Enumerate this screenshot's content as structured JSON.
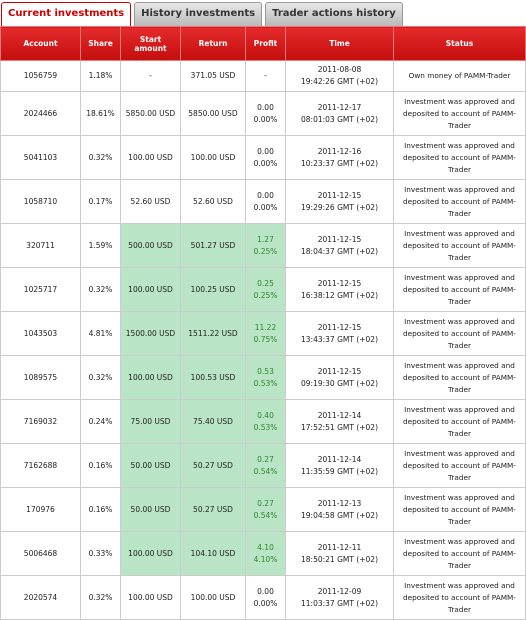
{
  "tabs": [
    "Current investments",
    "History investments",
    "Trader actions history"
  ],
  "active_tab": 0,
  "table": {
    "columns": [
      "Account",
      "Share",
      "Start amount",
      "Return",
      "Profit",
      "Time",
      "Status"
    ],
    "rows": [
      {
        "account": "1056759",
        "share": "1.18%",
        "start": "-",
        "return": "371.05 USD",
        "profit": [
          "-"
        ],
        "time": [
          "2011-08-08",
          "19:42:26 GMT (+02)"
        ],
        "status": "Own money of PAMM-Trader",
        "highlighted": false
      },
      {
        "account": "2024466",
        "share": "18.61%",
        "start": "5850.00 USD",
        "return": "5850.00 USD",
        "profit": [
          "0.00",
          "0.00%"
        ],
        "time": [
          "2011-12-17",
          "08:01:03 GMT (+02)"
        ],
        "status": "Investment was approved and deposited to account of PAMM-Trader",
        "highlighted": false
      },
      {
        "account": "5041103",
        "share": "0.32%",
        "start": "100.00 USD",
        "return": "100.00 USD",
        "profit": [
          "0.00",
          "0.00%"
        ],
        "time": [
          "2011-12-16",
          "10:23:37 GMT (+02)"
        ],
        "status": "Investment was approved and deposited to account of PAMM-Trader",
        "highlighted": false
      },
      {
        "account": "1058710",
        "share": "0.17%",
        "start": "52.60 USD",
        "return": "52.60 USD",
        "profit": [
          "0.00",
          "0.00%"
        ],
        "time": [
          "2011-12-15",
          "19:29:26 GMT (+02)"
        ],
        "status": "Investment was approved and deposited to account of PAMM-Trader",
        "highlighted": false
      },
      {
        "account": "320711",
        "share": "1.59%",
        "start": "500.00 USD",
        "return": "501.27 USD",
        "profit": [
          "1.27",
          "0.25%"
        ],
        "time": [
          "2011-12-15",
          "18:04:37 GMT (+02)"
        ],
        "status": "Investment was approved and deposited to account of PAMM-Trader",
        "highlighted": true
      },
      {
        "account": "1025717",
        "share": "0.32%",
        "start": "100.00 USD",
        "return": "100.25 USD",
        "profit": [
          "0.25",
          "0.25%"
        ],
        "time": [
          "2011-12-15",
          "16:38:12 GMT (+02)"
        ],
        "status": "Investment was approved and deposited to account of PAMM-Trader",
        "highlighted": true
      },
      {
        "account": "1043503",
        "share": "4.81%",
        "start": "1500.00 USD",
        "return": "1511.22 USD",
        "profit": [
          "11.22",
          "0.75%"
        ],
        "time": [
          "2011-12-15",
          "13:43:37 GMT (+02)"
        ],
        "status": "Investment was approved and deposited to account of PAMM-Trader",
        "highlighted": true
      },
      {
        "account": "1089575",
        "share": "0.32%",
        "start": "100.00 USD",
        "return": "100.53 USD",
        "profit": [
          "0.53",
          "0.53%"
        ],
        "time": [
          "2011-12-15",
          "09:19:30 GMT (+02)"
        ],
        "status": "Investment was approved and deposited to account of PAMM-Trader",
        "highlighted": true
      },
      {
        "account": "7169032",
        "share": "0.24%",
        "start": "75.00 USD",
        "return": "75.40 USD",
        "profit": [
          "0.40",
          "0.53%"
        ],
        "time": [
          "2011-12-14",
          "17:52:51 GMT (+02)"
        ],
        "status": "Investment was approved and deposited to account of PAMM-Trader",
        "highlighted": true
      },
      {
        "account": "7162688",
        "share": "0.16%",
        "start": "50.00 USD",
        "return": "50.27 USD",
        "profit": [
          "0.27",
          "0.54%"
        ],
        "time": [
          "2011-12-14",
          "11:35:59 GMT (+02)"
        ],
        "status": "Investment was approved and deposited to account of PAMM-Trader",
        "highlighted": true
      },
      {
        "account": "170976",
        "share": "0.16%",
        "start": "50.00 USD",
        "return": "50.27 USD",
        "profit": [
          "0.27",
          "0.54%"
        ],
        "time": [
          "2011-12-13",
          "19:04:58 GMT (+02)"
        ],
        "status": "Investment was approved and deposited to account of PAMM-Trader",
        "highlighted": true
      },
      {
        "account": "5006468",
        "share": "0.33%",
        "start": "100.00 USD",
        "return": "104.10 USD",
        "profit": [
          "4.10",
          "4.10%"
        ],
        "time": [
          "2011-12-11",
          "18:50:21 GMT (+02)"
        ],
        "status": "Investment was approved and deposited to account of PAMM-Trader",
        "highlighted": true
      },
      {
        "account": "2020574",
        "share": "0.32%",
        "start": "100.00 USD",
        "return": "100.00 USD",
        "profit": [
          "0.00",
          "0.00%"
        ],
        "time": [
          "2011-12-09",
          "11:03:37 GMT (+02)"
        ],
        "status": "Investment was approved and deposited to account of PAMM-Trader",
        "highlighted": false
      }
    ]
  }
}
